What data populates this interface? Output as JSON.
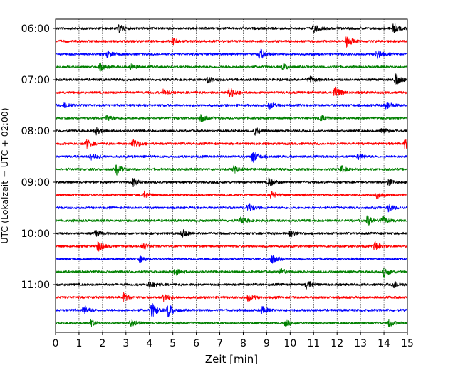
{
  "chart_data": {
    "type": "line",
    "title": "",
    "xlabel": "Zeit  [min]",
    "ylabel": "UTC (Lokalzeit = UTC + 02:00)",
    "xlim": [
      0,
      15
    ],
    "x_ticks": [
      "0",
      "1",
      "2",
      "3",
      "4",
      "5",
      "6",
      "7",
      "8",
      "9",
      "10",
      "11",
      "12",
      "13",
      "14",
      "15"
    ],
    "y_ticks": [
      "06:00",
      "07:00",
      "08:00",
      "09:00",
      "10:00",
      "11:00"
    ],
    "grid": "vertical dotted at each minute",
    "trace_interval_min": 15,
    "colors": [
      "#000000",
      "#ff0000",
      "#0000ff",
      "#008000"
    ],
    "series": [
      {
        "start": "06:00",
        "color": "#000000",
        "events": [
          [
            2.7,
            1.0
          ],
          [
            11.0,
            1.0
          ],
          [
            14.4,
            1.3
          ]
        ]
      },
      {
        "start": "06:15",
        "color": "#ff0000",
        "events": [
          [
            5.0,
            0.8
          ],
          [
            12.4,
            1.6
          ]
        ]
      },
      {
        "start": "06:30",
        "color": "#0000ff",
        "events": [
          [
            2.2,
            0.8
          ],
          [
            8.7,
            1.6
          ],
          [
            13.7,
            1.3
          ]
        ]
      },
      {
        "start": "06:45",
        "color": "#008000",
        "events": [
          [
            1.9,
            0.9
          ],
          [
            3.2,
            0.7
          ],
          [
            9.7,
            0.8
          ]
        ]
      },
      {
        "start": "07:00",
        "color": "#000000",
        "events": [
          [
            6.5,
            0.8
          ],
          [
            10.8,
            1.0
          ],
          [
            14.5,
            1.4
          ]
        ]
      },
      {
        "start": "07:15",
        "color": "#ff0000",
        "events": [
          [
            4.6,
            0.8
          ],
          [
            7.4,
            1.6
          ],
          [
            11.9,
            1.8
          ]
        ]
      },
      {
        "start": "07:30",
        "color": "#0000ff",
        "events": [
          [
            0.4,
            0.8
          ],
          [
            9.1,
            0.9
          ],
          [
            14.1,
            1.2
          ]
        ]
      },
      {
        "start": "07:45",
        "color": "#008000",
        "events": [
          [
            2.2,
            0.8
          ],
          [
            6.2,
            1.0
          ],
          [
            11.3,
            0.8
          ]
        ]
      },
      {
        "start": "08:00",
        "color": "#000000",
        "events": [
          [
            1.7,
            1.0
          ],
          [
            8.5,
            1.0
          ],
          [
            13.9,
            1.0
          ]
        ]
      },
      {
        "start": "08:15",
        "color": "#ff0000",
        "events": [
          [
            1.3,
            1.2
          ],
          [
            3.3,
            1.3
          ],
          [
            14.9,
            1.3
          ]
        ]
      },
      {
        "start": "08:30",
        "color": "#0000ff",
        "events": [
          [
            1.5,
            1.0
          ],
          [
            8.4,
            1.6
          ],
          [
            12.9,
            0.8
          ]
        ]
      },
      {
        "start": "08:45",
        "color": "#008000",
        "events": [
          [
            2.6,
            1.3
          ],
          [
            7.6,
            1.0
          ],
          [
            12.2,
            0.8
          ]
        ]
      },
      {
        "start": "09:00",
        "color": "#000000",
        "events": [
          [
            3.3,
            1.0
          ],
          [
            9.1,
            1.2
          ],
          [
            14.2,
            1.0
          ]
        ]
      },
      {
        "start": "09:15",
        "color": "#ff0000",
        "events": [
          [
            3.8,
            0.9
          ],
          [
            9.2,
            1.0
          ],
          [
            13.7,
            0.8
          ]
        ]
      },
      {
        "start": "09:30",
        "color": "#0000ff",
        "events": [
          [
            8.2,
            1.2
          ],
          [
            14.2,
            1.0
          ]
        ]
      },
      {
        "start": "09:45",
        "color": "#008000",
        "events": [
          [
            7.9,
            0.8
          ],
          [
            13.3,
            1.4
          ],
          [
            13.9,
            1.2
          ]
        ]
      },
      {
        "start": "10:00",
        "color": "#000000",
        "events": [
          [
            1.7,
            0.8
          ],
          [
            5.4,
            1.0
          ],
          [
            10.0,
            0.8
          ]
        ]
      },
      {
        "start": "10:15",
        "color": "#ff0000",
        "events": [
          [
            1.8,
            1.4
          ],
          [
            3.7,
            1.0
          ],
          [
            13.6,
            1.2
          ]
        ]
      },
      {
        "start": "10:30",
        "color": "#0000ff",
        "events": [
          [
            3.6,
            0.8
          ],
          [
            9.2,
            1.2
          ]
        ]
      },
      {
        "start": "10:45",
        "color": "#008000",
        "events": [
          [
            5.1,
            0.9
          ],
          [
            9.6,
            0.8
          ],
          [
            14.0,
            1.4
          ]
        ]
      },
      {
        "start": "11:00",
        "color": "#000000",
        "events": [
          [
            4.0,
            0.8
          ],
          [
            10.7,
            1.2
          ],
          [
            14.4,
            1.0
          ]
        ]
      },
      {
        "start": "11:15",
        "color": "#ff0000",
        "events": [
          [
            2.9,
            1.1
          ],
          [
            4.6,
            1.2
          ],
          [
            8.2,
            1.0
          ]
        ]
      },
      {
        "start": "11:30",
        "color": "#0000ff",
        "events": [
          [
            1.2,
            1.2
          ],
          [
            4.1,
            2.0
          ],
          [
            4.8,
            2.0
          ],
          [
            8.8,
            0.9
          ]
        ]
      },
      {
        "start": "11:45",
        "color": "#008000",
        "events": [
          [
            1.5,
            0.8
          ],
          [
            3.2,
            0.9
          ],
          [
            9.8,
            0.8
          ],
          [
            14.2,
            0.9
          ]
        ]
      }
    ]
  }
}
